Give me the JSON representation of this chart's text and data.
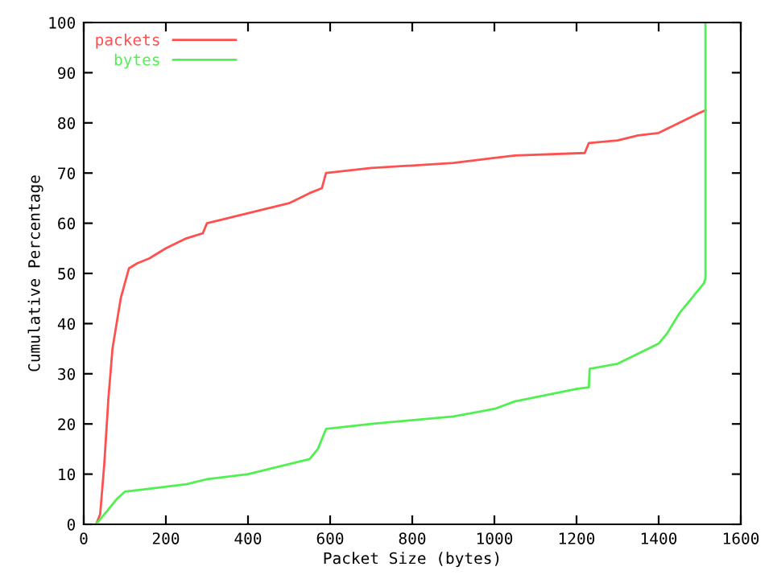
{
  "chart_data": {
    "type": "line",
    "xlabel": "Packet Size (bytes)",
    "ylabel": "Cumulative Percentage",
    "xlim": [
      0,
      1600
    ],
    "ylim": [
      0,
      100
    ],
    "xticks": [
      0,
      200,
      400,
      600,
      800,
      1000,
      1200,
      1400,
      1600
    ],
    "yticks": [
      0,
      10,
      20,
      30,
      40,
      50,
      60,
      70,
      80,
      90,
      100
    ],
    "grid": false,
    "legend": "top left",
    "marker": "none",
    "line_style": "solid",
    "series": [
      {
        "name": "packets",
        "color": "#ff5050",
        "x": [
          30,
          40,
          50,
          60,
          70,
          80,
          90,
          100,
          110,
          130,
          160,
          200,
          250,
          290,
          300,
          400,
          450,
          500,
          550,
          580,
          590,
          700,
          900,
          1000,
          1050,
          1220,
          1230,
          1300,
          1350,
          1400,
          1450,
          1500,
          1514
        ],
        "values": [
          0,
          2,
          12,
          25,
          35,
          40,
          45,
          48,
          51,
          52,
          53,
          55,
          57,
          58,
          60,
          62,
          63,
          64,
          66,
          67,
          70,
          71,
          72,
          73,
          73.5,
          74,
          76,
          76.5,
          77.5,
          78,
          80,
          82,
          82.5
        ]
      },
      {
        "name": "bytes",
        "color": "#50f050",
        "x": [
          30,
          50,
          80,
          100,
          150,
          250,
          300,
          400,
          500,
          550,
          570,
          590,
          700,
          900,
          1000,
          1050,
          1200,
          1230,
          1232,
          1300,
          1350,
          1400,
          1420,
          1450,
          1470,
          1500,
          1510,
          1514,
          1514
        ],
        "values": [
          0,
          2,
          5,
          6.5,
          7,
          8,
          9,
          10,
          12,
          13,
          15,
          19,
          20,
          21.5,
          23,
          24.5,
          27,
          27.3,
          31,
          32,
          34,
          36,
          38,
          42,
          44,
          47,
          48,
          49,
          100
        ]
      }
    ]
  }
}
